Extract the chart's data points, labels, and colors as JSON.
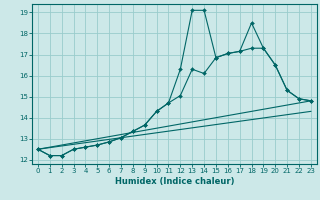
{
  "xlabel": "Humidex (Indice chaleur)",
  "xlim": [
    -0.5,
    23.5
  ],
  "ylim": [
    11.8,
    19.4
  ],
  "yticks": [
    12,
    13,
    14,
    15,
    16,
    17,
    18,
    19
  ],
  "xticks": [
    0,
    1,
    2,
    3,
    4,
    5,
    6,
    7,
    8,
    9,
    10,
    11,
    12,
    13,
    14,
    15,
    16,
    17,
    18,
    19,
    20,
    21,
    22,
    23
  ],
  "bg_color": "#cce8e8",
  "grid_color": "#99cccc",
  "line_color": "#006666",
  "line1_x": [
    0,
    1,
    2,
    3,
    4,
    5,
    6,
    7,
    8,
    9,
    10,
    11,
    12,
    13,
    14,
    15,
    16,
    17,
    18,
    19,
    20,
    21,
    22,
    23
  ],
  "line1_y": [
    12.5,
    12.2,
    12.2,
    12.5,
    12.6,
    12.7,
    12.85,
    13.05,
    13.35,
    13.65,
    14.3,
    14.7,
    16.3,
    19.1,
    19.1,
    16.85,
    17.05,
    17.15,
    18.5,
    17.3,
    16.5,
    15.3,
    14.9,
    14.8
  ],
  "line2_x": [
    0,
    1,
    2,
    3,
    4,
    5,
    6,
    7,
    8,
    9,
    10,
    11,
    12,
    13,
    14,
    15,
    16,
    17,
    18,
    19,
    20,
    21,
    22,
    23
  ],
  "line2_y": [
    12.5,
    12.2,
    12.2,
    12.5,
    12.6,
    12.7,
    12.85,
    13.05,
    13.35,
    13.65,
    14.3,
    14.7,
    15.05,
    16.3,
    16.1,
    16.85,
    17.05,
    17.15,
    17.3,
    17.3,
    16.5,
    15.3,
    14.9,
    14.8
  ],
  "line3_x": [
    0,
    23
  ],
  "line3_y": [
    12.5,
    14.8
  ],
  "line4_x": [
    0,
    23
  ],
  "line4_y": [
    12.5,
    14.3
  ],
  "xlabel_fontsize": 6,
  "tick_fontsize": 5
}
